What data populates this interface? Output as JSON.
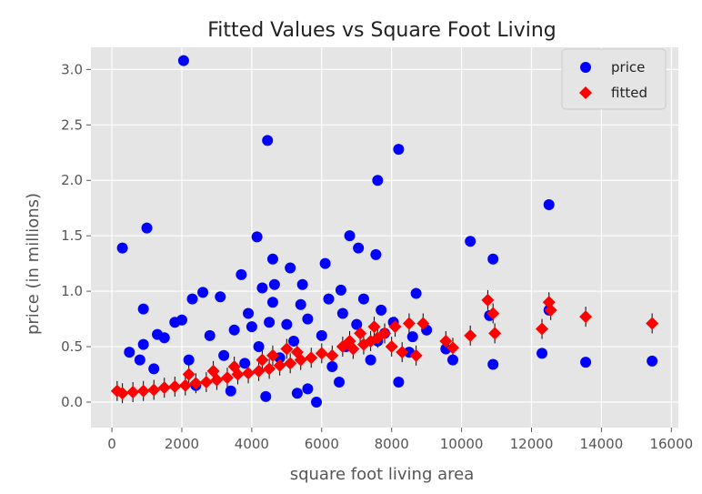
{
  "chart_data": {
    "type": "scatter",
    "title": "Fitted Values vs Square Foot Living",
    "xlabel": "square foot living area",
    "ylabel": "price (in millions)",
    "xlim": [
      -600,
      16200
    ],
    "ylim": [
      -0.23,
      3.2
    ],
    "x_ticks": [
      0,
      2000,
      4000,
      6000,
      8000,
      10000,
      12000,
      14000,
      16000
    ],
    "y_ticks": [
      0.0,
      0.5,
      1.0,
      1.5,
      2.0,
      2.5,
      3.0
    ],
    "x_tick_labels": [
      "0",
      "2000",
      "4000",
      "6000",
      "8000",
      "10000",
      "12000",
      "14000",
      "16000"
    ],
    "y_tick_labels": [
      "0.0",
      "0.5",
      "1.0",
      "1.5",
      "2.0",
      "2.5",
      "3.0"
    ],
    "grid": true,
    "legend_position": "top-right",
    "background": "#e5e5e5",
    "series": [
      {
        "name": "price",
        "marker": "circle",
        "color": "#0000ff",
        "points": [
          [
            2050,
            3.08
          ],
          [
            4450,
            2.36
          ],
          [
            8200,
            2.28
          ],
          [
            7600,
            2.0
          ],
          [
            12500,
            1.78
          ],
          [
            1000,
            1.57
          ],
          [
            4150,
            1.49
          ],
          [
            10250,
            1.45
          ],
          [
            300,
            1.39
          ],
          [
            6800,
            1.5
          ],
          [
            4600,
            1.29
          ],
          [
            10900,
            1.29
          ],
          [
            7050,
            1.39
          ],
          [
            7550,
            1.33
          ],
          [
            3700,
            1.15
          ],
          [
            5100,
            1.21
          ],
          [
            6100,
            1.25
          ],
          [
            4650,
            1.06
          ],
          [
            4300,
            1.03
          ],
          [
            5450,
            1.06
          ],
          [
            6550,
            1.01
          ],
          [
            8700,
            0.98
          ],
          [
            9550,
            0.48
          ],
          [
            9750,
            0.38
          ],
          [
            12300,
            0.44
          ],
          [
            13550,
            0.36
          ],
          [
            15450,
            0.37
          ],
          [
            10900,
            0.34
          ],
          [
            10800,
            0.78
          ],
          [
            12500,
            0.83
          ],
          [
            7200,
            0.93
          ],
          [
            6200,
            0.93
          ],
          [
            7700,
            0.83
          ],
          [
            8050,
            0.72
          ],
          [
            8600,
            0.59
          ],
          [
            9000,
            0.65
          ],
          [
            8200,
            0.18
          ],
          [
            7400,
            0.38
          ],
          [
            6300,
            0.32
          ],
          [
            5850,
            0.0
          ],
          [
            5300,
            0.08
          ],
          [
            900,
            0.84
          ],
          [
            2600,
            0.99
          ],
          [
            2300,
            0.93
          ],
          [
            3100,
            0.95
          ],
          [
            900,
            0.52
          ],
          [
            1500,
            0.58
          ],
          [
            1800,
            0.72
          ],
          [
            1300,
            0.61
          ],
          [
            2000,
            0.74
          ],
          [
            500,
            0.45
          ],
          [
            800,
            0.38
          ],
          [
            3900,
            0.8
          ],
          [
            4600,
            0.9
          ],
          [
            5400,
            0.88
          ],
          [
            2800,
            0.6
          ],
          [
            3500,
            0.65
          ],
          [
            4000,
            0.68
          ],
          [
            4500,
            0.72
          ],
          [
            5000,
            0.7
          ],
          [
            5600,
            0.75
          ],
          [
            6600,
            0.8
          ],
          [
            7000,
            0.7
          ],
          [
            7600,
            0.55
          ],
          [
            8500,
            0.45
          ],
          [
            1200,
            0.3
          ],
          [
            2200,
            0.38
          ],
          [
            3200,
            0.42
          ],
          [
            4200,
            0.5
          ],
          [
            5200,
            0.55
          ],
          [
            6000,
            0.6
          ],
          [
            6700,
            0.5
          ],
          [
            7800,
            0.62
          ],
          [
            3800,
            0.35
          ],
          [
            4800,
            0.4
          ],
          [
            2400,
            0.15
          ],
          [
            3400,
            0.1
          ],
          [
            4400,
            0.05
          ],
          [
            5600,
            0.12
          ],
          [
            6500,
            0.18
          ]
        ]
      },
      {
        "name": "fitted",
        "marker": "diamond",
        "color": "#ff0000",
        "points": [
          [
            10750,
            0.92
          ],
          [
            12500,
            0.9
          ],
          [
            12550,
            0.83
          ],
          [
            10900,
            0.8
          ],
          [
            13550,
            0.77
          ],
          [
            15450,
            0.71
          ],
          [
            8900,
            0.71
          ],
          [
            8500,
            0.71
          ],
          [
            12300,
            0.66
          ],
          [
            10950,
            0.62
          ],
          [
            10250,
            0.6
          ],
          [
            9550,
            0.55
          ],
          [
            9750,
            0.49
          ],
          [
            8100,
            0.68
          ],
          [
            7800,
            0.62
          ],
          [
            7600,
            0.58
          ],
          [
            7400,
            0.55
          ],
          [
            7100,
            0.62
          ],
          [
            7200,
            0.52
          ],
          [
            6900,
            0.48
          ],
          [
            6600,
            0.5
          ],
          [
            6300,
            0.42
          ],
          [
            6000,
            0.44
          ],
          [
            5700,
            0.4
          ],
          [
            5400,
            0.38
          ],
          [
            5100,
            0.35
          ],
          [
            4800,
            0.33
          ],
          [
            4500,
            0.3
          ],
          [
            4200,
            0.28
          ],
          [
            3900,
            0.26
          ],
          [
            3600,
            0.25
          ],
          [
            3300,
            0.22
          ],
          [
            3000,
            0.2
          ],
          [
            2700,
            0.18
          ],
          [
            2400,
            0.17
          ],
          [
            2100,
            0.15
          ],
          [
            1800,
            0.14
          ],
          [
            1500,
            0.13
          ],
          [
            1200,
            0.11
          ],
          [
            900,
            0.1
          ],
          [
            600,
            0.09
          ],
          [
            300,
            0.08
          ],
          [
            150,
            0.1
          ],
          [
            4300,
            0.38
          ],
          [
            4600,
            0.42
          ],
          [
            5000,
            0.48
          ],
          [
            5300,
            0.45
          ],
          [
            6800,
            0.55
          ],
          [
            7500,
            0.68
          ],
          [
            8000,
            0.5
          ],
          [
            8300,
            0.45
          ],
          [
            8700,
            0.42
          ],
          [
            3500,
            0.32
          ],
          [
            2900,
            0.28
          ],
          [
            2200,
            0.25
          ]
        ]
      }
    ]
  }
}
